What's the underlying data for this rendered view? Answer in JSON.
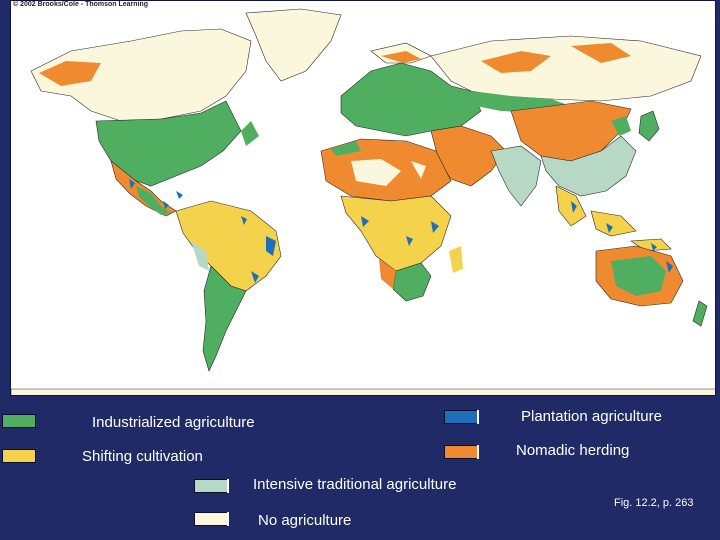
{
  "map": {
    "credit": "© 2002 Brooks/Cole - Thomson Learning"
  },
  "legend": {
    "industrialized": {
      "label": "Industrialized agriculture",
      "color": "#4fae5f"
    },
    "plantation": {
      "label": "Plantation agriculture",
      "color": "#1f6fb8"
    },
    "shifting": {
      "label": "Shifting cultivation",
      "color": "#f4d24c"
    },
    "nomadic": {
      "label": "Nomadic herding",
      "color": "#f08a30"
    },
    "intensive": {
      "label": "Intensive traditional agriculture",
      "color": "#b7d8c4"
    },
    "none": {
      "label": "No agriculture",
      "color": "#fbf7dc"
    }
  },
  "figure_ref": "Fig. 12.2, p. 263",
  "colors": {
    "background": "#1f2a66",
    "borders": "#2a2a2a"
  }
}
